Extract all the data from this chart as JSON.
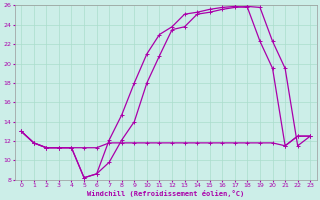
{
  "xlabel": "Windchill (Refroidissement éolien,°C)",
  "bg_color": "#cceee8",
  "grid_color": "#aaddcc",
  "line_color": "#aa00aa",
  "xlim": [
    -0.5,
    23.5
  ],
  "ylim": [
    8,
    26
  ],
  "xticks": [
    0,
    1,
    2,
    3,
    4,
    5,
    6,
    7,
    8,
    9,
    10,
    11,
    12,
    13,
    14,
    15,
    16,
    17,
    18,
    19,
    20,
    21,
    22,
    23
  ],
  "yticks": [
    8,
    10,
    12,
    14,
    16,
    18,
    20,
    22,
    24,
    26
  ],
  "line1_x": [
    0,
    1,
    2,
    3,
    4,
    5,
    6,
    7,
    8,
    9,
    10,
    11,
    12,
    13,
    14,
    15,
    16,
    17,
    18,
    19,
    20,
    21,
    22,
    23
  ],
  "line1_y": [
    13.0,
    11.8,
    11.3,
    11.3,
    11.3,
    8.2,
    8.6,
    12.1,
    14.7,
    18.0,
    21.0,
    23.0,
    23.8,
    25.1,
    25.3,
    25.6,
    25.8,
    25.9,
    25.8,
    22.3,
    19.5,
    11.5,
    12.5,
    12.5
  ],
  "line2_x": [
    0,
    1,
    2,
    3,
    4,
    5,
    6,
    7,
    8,
    9,
    10,
    11,
    12,
    13,
    14,
    15,
    16,
    17,
    18,
    19,
    20,
    21,
    22,
    23
  ],
  "line2_y": [
    13.0,
    11.8,
    11.3,
    11.3,
    11.3,
    11.3,
    11.3,
    11.8,
    11.8,
    11.8,
    11.8,
    11.8,
    11.8,
    11.8,
    11.8,
    11.8,
    11.8,
    11.8,
    11.8,
    11.8,
    11.8,
    11.5,
    12.5,
    12.5
  ],
  "line3_x": [
    0,
    1,
    2,
    3,
    4,
    5,
    6,
    7,
    8,
    9,
    10,
    11,
    12,
    13,
    14,
    15,
    16,
    17,
    18,
    19,
    20,
    21,
    22,
    23
  ],
  "line3_y": [
    13.0,
    11.8,
    11.3,
    11.3,
    11.3,
    8.2,
    8.6,
    9.8,
    12.1,
    14.0,
    18.0,
    20.8,
    23.5,
    23.8,
    25.1,
    25.3,
    25.6,
    25.8,
    25.9,
    25.8,
    22.3,
    19.5,
    11.5,
    12.5
  ]
}
